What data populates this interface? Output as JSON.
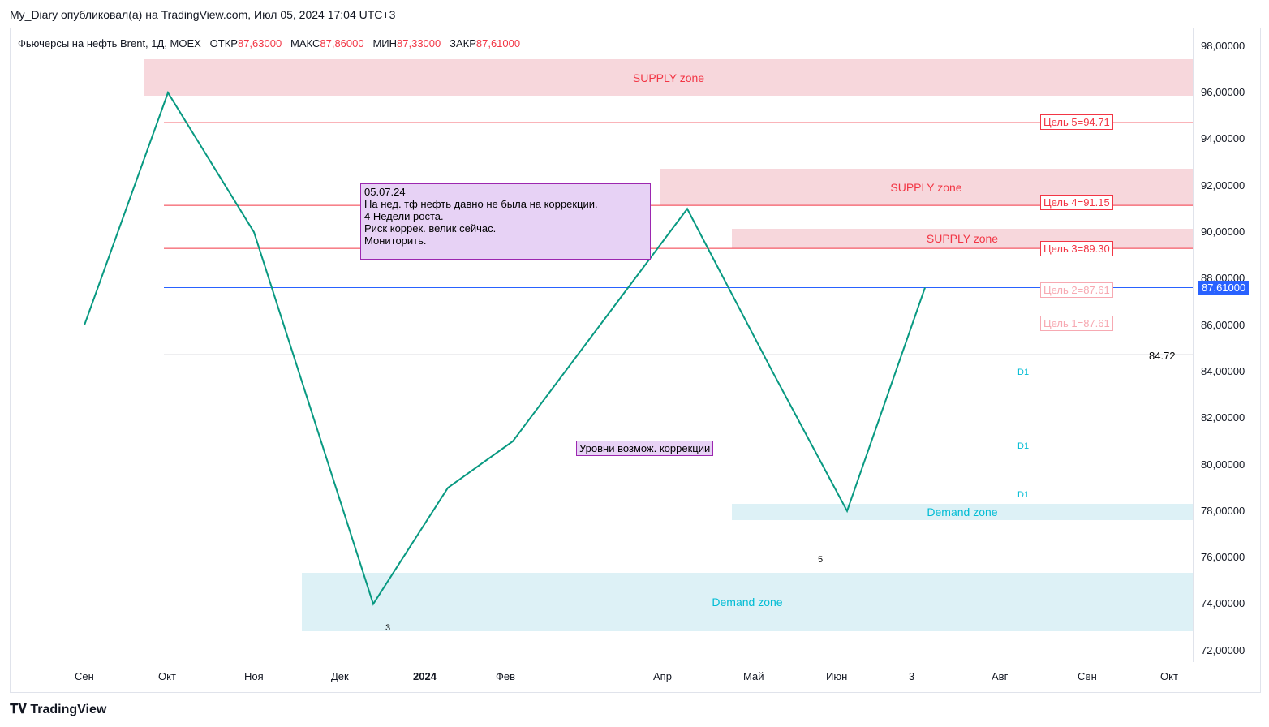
{
  "header": {
    "publisher_line": "My_Diary опубликовал(а) на TradingView.com, Июл 05, 2024 17:04 UTC+3"
  },
  "symbol": {
    "text": "Фьючерсы на нефть Brent, 1Д, MOEX",
    "o_label": "ОТКР",
    "o": "87,63000",
    "h_label": "МАКС",
    "h": "87,86000",
    "l_label": "МИН",
    "l": "87,33000",
    "c_label": "ЗАКР",
    "c": "87,61000"
  },
  "zones": {
    "supply": "SUPPLY zone",
    "demand": "Demand zone"
  },
  "targets": [
    "Цель 5=94.71",
    "Цель 4=91.15",
    "Цель 3=89.30",
    "Цель 2=87.61",
    "Цель 1=87.61"
  ],
  "note": {
    "lines": [
      "05.07.24",
      "На нед. тф нефть давно не была на коррекции.",
      "4 Недели роста.",
      "Риск коррек. велик сейчас.",
      "Мониторить."
    ]
  },
  "label_corr": "Уровни возмож. коррекции",
  "level_8472": "84.72",
  "d1": "D1",
  "wave3": "3",
  "wave5": "5",
  "last_price": "87,61000",
  "logo": "TradingView",
  "chart_data": {
    "type": "line",
    "y_ticks": [
      "98,00000",
      "96,00000",
      "94,00000",
      "92,00000",
      "90,00000",
      "88,00000",
      "86,00000",
      "84,00000",
      "82,00000",
      "80,00000",
      "78,00000",
      "76,00000",
      "74,00000",
      "72,00000"
    ],
    "x_ticks": [
      "Сен",
      "Окт",
      "Ноя",
      "Дек",
      "2024",
      "Фев",
      "Апр",
      "Май",
      "Июн",
      "3",
      "Авг",
      "Сен",
      "Окт"
    ],
    "ylim": [
      71.5,
      98.8
    ],
    "x": [
      "Сен",
      "Окт",
      "Ноя",
      "Дек",
      "2024",
      "Фев",
      "Апр",
      "Май",
      "Июн",
      "3"
    ],
    "values": [
      86,
      96,
      90,
      74,
      79,
      81,
      91,
      84,
      78,
      87.61
    ]
  },
  "colors": {
    "up": "#089981",
    "down": "#f23645",
    "supply": "#f7d7dc",
    "demand": "#ddf1f6"
  }
}
